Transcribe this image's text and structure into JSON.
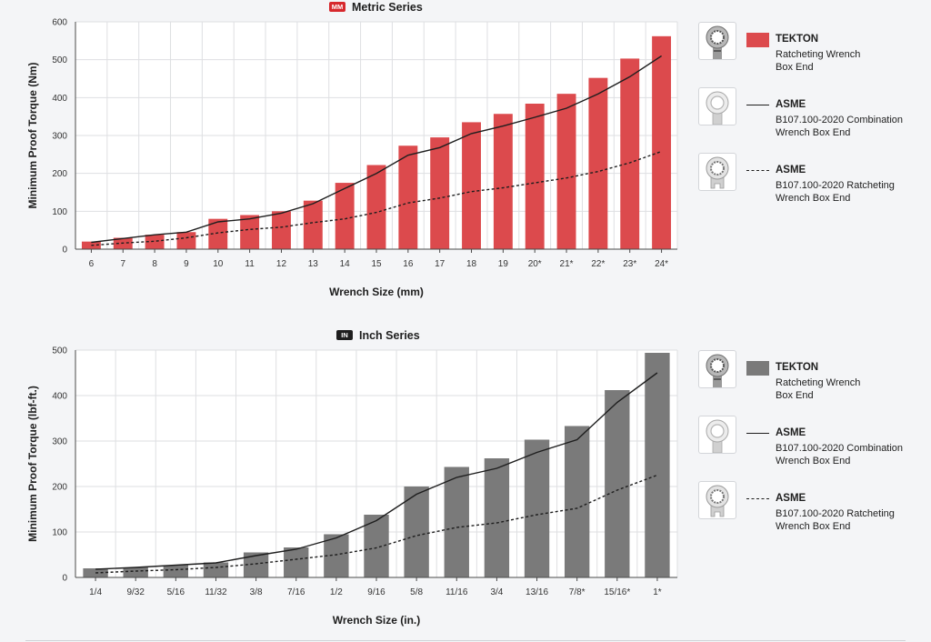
{
  "chart_data": [
    {
      "type": "bar",
      "title": "Metric Series",
      "badge": "MM",
      "xlabel": "Wrench Size (mm)",
      "ylabel": "Minimum Proof Torque (Nm)",
      "ylim": [
        0,
        600
      ],
      "yticks": [
        0,
        100,
        200,
        300,
        400,
        500,
        600
      ],
      "categories": [
        "6",
        "7",
        "8",
        "9",
        "10",
        "11",
        "12",
        "13",
        "14",
        "15",
        "16",
        "17",
        "18",
        "19",
        "20*",
        "21*",
        "22*",
        "23*",
        "24*"
      ],
      "series": [
        {
          "name": "TEKTON Ratcheting Wrench Box End",
          "kind": "bar",
          "values": [
            20,
            30,
            38,
            45,
            80,
            90,
            100,
            128,
            175,
            222,
            273,
            295,
            335,
            357,
            384,
            410,
            452,
            503,
            562
          ]
        },
        {
          "name": "ASME B107.100-2020 Combination Wrench Box End",
          "kind": "line-solid",
          "values": [
            18,
            28,
            38,
            45,
            72,
            80,
            95,
            120,
            160,
            200,
            248,
            268,
            305,
            325,
            348,
            372,
            410,
            455,
            510
          ]
        },
        {
          "name": "ASME B107.100-2020 Ratcheting Wrench Box End",
          "kind": "line-dashed",
          "values": [
            10,
            16,
            21,
            30,
            43,
            52,
            58,
            70,
            80,
            97,
            122,
            135,
            152,
            162,
            175,
            188,
            205,
            228,
            258
          ]
        }
      ],
      "grid": true
    },
    {
      "type": "bar",
      "title": "Inch Series",
      "badge": "IN",
      "xlabel": "Wrench Size (in.)",
      "ylabel": "Minimum Proof Torque (lbf-ft.)",
      "ylim": [
        0,
        500
      ],
      "yticks": [
        0,
        100,
        200,
        300,
        400,
        500
      ],
      "categories": [
        "1/4",
        "9/32",
        "5/16",
        "11/32",
        "3/8",
        "7/16",
        "1/2",
        "9/16",
        "5/8",
        "11/16",
        "3/4",
        "13/16",
        "7/8*",
        "15/16*",
        "1*"
      ],
      "series": [
        {
          "name": "TEKTON Ratcheting Wrench Box End",
          "kind": "bar",
          "values": [
            20,
            22,
            27,
            33,
            55,
            66,
            95,
            138,
            200,
            243,
            262,
            303,
            333,
            412,
            494
          ]
        },
        {
          "name": "ASME B107.100-2020 Combination Wrench Box End",
          "kind": "line-solid",
          "values": [
            18,
            22,
            27,
            32,
            48,
            62,
            87,
            125,
            183,
            220,
            240,
            275,
            303,
            385,
            450
          ]
        },
        {
          "name": "ASME B107.100-2020 Ratcheting Wrench Box End",
          "kind": "line-dashed",
          "values": [
            10,
            14,
            17,
            22,
            30,
            40,
            50,
            65,
            92,
            110,
            120,
            138,
            152,
            192,
            225
          ]
        }
      ],
      "grid": true
    }
  ],
  "colors": {
    "metric_bar": "#dc4a4d",
    "inch_bar": "#7a7a7a",
    "badge_metric": "#d7282d",
    "badge_inch": "#1e1e1e",
    "line": "#1e1e1e",
    "grid": "#dedfe2"
  },
  "legend": {
    "tekton": {
      "name": "TEKTON",
      "desc_1": "Ratcheting Wrench",
      "desc_2": "Box End"
    },
    "asme_combo": {
      "name": "ASME",
      "desc_1": "B107.100-2020 Combination",
      "desc_2": "Wrench Box End"
    },
    "asme_ratchet": {
      "name": "ASME",
      "desc_1": "B107.100-2020 Ratcheting",
      "desc_2": "Wrench Box End"
    }
  }
}
